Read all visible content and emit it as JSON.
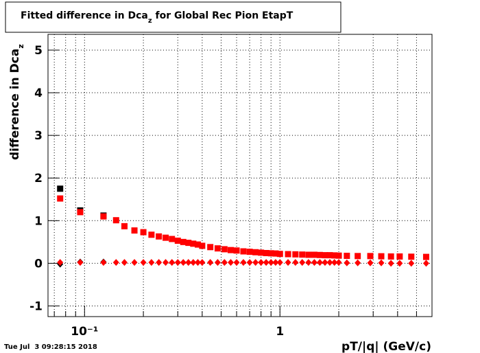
{
  "chart_data": {
    "type": "scatter",
    "title": {
      "main": "Fitted difference in Dca",
      "sub": "z",
      "tail": " for Global Rec Pion EtapT"
    },
    "y_label": {
      "main": "difference in Dca",
      "sub": "z"
    },
    "x_label": "pT/|q| (GeV/c)",
    "timestamp": "Tue Jul  3 09:28:15 2018",
    "log_x": true,
    "grid": true,
    "xlim": [
      0.065,
      6.0
    ],
    "ylim": [
      -1.25,
      5.37
    ],
    "xticks": [
      {
        "value": 0.1,
        "label": "10⁻¹"
      },
      1
    ],
    "xminor_ticks": [
      0.07,
      0.08,
      0.09,
      0.2,
      0.3,
      0.4,
      0.5,
      0.6,
      0.7,
      0.8,
      0.9,
      2,
      3,
      4,
      5,
      6
    ],
    "yticks": [
      -1,
      0,
      1,
      2,
      3,
      4,
      5
    ],
    "x": [
      0.075,
      0.095,
      0.125,
      0.145,
      0.16,
      0.18,
      0.2,
      0.22,
      0.24,
      0.26,
      0.28,
      0.3,
      0.32,
      0.34,
      0.36,
      0.38,
      0.4,
      0.44,
      0.48,
      0.52,
      0.56,
      0.6,
      0.65,
      0.7,
      0.75,
      0.8,
      0.85,
      0.9,
      0.95,
      1.0,
      1.1,
      1.2,
      1.3,
      1.4,
      1.5,
      1.6,
      1.7,
      1.8,
      1.9,
      2.0,
      2.2,
      2.5,
      2.9,
      3.3,
      3.7,
      4.1,
      4.7,
      5.6
    ],
    "series": [
      {
        "marker": "square",
        "color": "#000000",
        "values": [
          1.75,
          1.24,
          1.12,
          null,
          null,
          null,
          null,
          null,
          null,
          null,
          null,
          null,
          null,
          null,
          null,
          null,
          null,
          null,
          null,
          null,
          null,
          null,
          null,
          null,
          null,
          null,
          null,
          null,
          null,
          null,
          null,
          null,
          null,
          null,
          null,
          null,
          null,
          null,
          null,
          null,
          null,
          null,
          null,
          null,
          null,
          null,
          null,
          null
        ]
      },
      {
        "marker": "diamond",
        "color": "#000000",
        "values": [
          -0.02,
          0.03,
          0.03,
          null,
          null,
          null,
          null,
          null,
          null,
          null,
          null,
          null,
          null,
          null,
          null,
          null,
          null,
          null,
          null,
          null,
          null,
          null,
          null,
          null,
          null,
          null,
          null,
          null,
          null,
          null,
          null,
          null,
          null,
          null,
          null,
          null,
          null,
          null,
          null,
          null,
          null,
          null,
          null,
          null,
          null,
          null,
          null,
          null
        ]
      },
      {
        "marker": "square",
        "color": "#ff0000",
        "values": [
          1.52,
          1.2,
          1.1,
          1.01,
          0.87,
          0.77,
          0.73,
          0.67,
          0.63,
          0.6,
          0.57,
          0.53,
          0.5,
          0.48,
          0.46,
          0.44,
          0.41,
          0.38,
          0.35,
          0.33,
          0.31,
          0.3,
          0.28,
          0.27,
          0.26,
          0.25,
          0.24,
          0.235,
          0.23,
          0.22,
          0.215,
          0.21,
          0.205,
          0.2,
          0.2,
          0.195,
          0.19,
          0.19,
          0.185,
          0.18,
          0.175,
          0.17,
          0.17,
          0.165,
          0.16,
          0.16,
          0.155,
          0.15
        ]
      },
      {
        "marker": "diamond",
        "color": "#ff0000",
        "values": [
          0.02,
          0.02,
          0.02,
          0.02,
          0.02,
          0.02,
          0.02,
          0.02,
          0.02,
          0.02,
          0.02,
          0.02,
          0.02,
          0.02,
          0.02,
          0.02,
          0.02,
          0.02,
          0.02,
          0.02,
          0.02,
          0.02,
          0.02,
          0.02,
          0.02,
          0.02,
          0.02,
          0.02,
          0.02,
          0.02,
          0.02,
          0.02,
          0.02,
          0.02,
          0.02,
          0.02,
          0.02,
          0.02,
          0.02,
          0.02,
          0.01,
          0.01,
          0.01,
          0.01,
          0.0,
          0.0,
          0.0,
          0.0
        ]
      }
    ]
  }
}
